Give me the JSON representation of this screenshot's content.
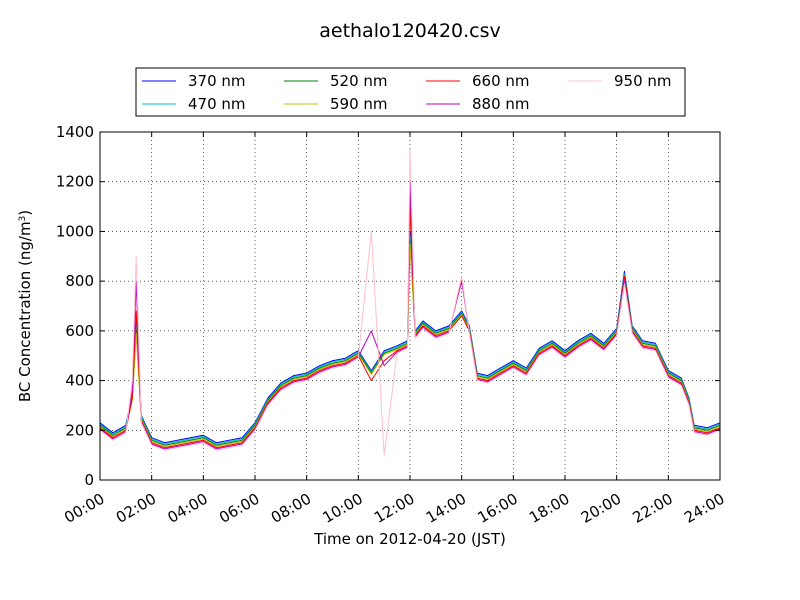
{
  "chart_data": {
    "type": "line",
    "title": "aethalo120420.csv",
    "xlabel": "Time on 2012-04-20 (JST)",
    "ylabel": "BC Concentration (ng/m³)",
    "ylabel_main": "BC Concentration (ng/m",
    "ylabel_sup": "3",
    "ylabel_close": ")",
    "xlim": [
      0,
      24
    ],
    "ylim": [
      0,
      1400
    ],
    "grid": true,
    "legend_position": "top-outside",
    "x_ticks": [
      0,
      2,
      4,
      6,
      8,
      10,
      12,
      14,
      16,
      18,
      20,
      22,
      24
    ],
    "x_tick_labels": [
      "00:00",
      "02:00",
      "04:00",
      "06:00",
      "08:00",
      "10:00",
      "12:00",
      "14:00",
      "16:00",
      "18:00",
      "20:00",
      "22:00",
      "24:00"
    ],
    "y_ticks": [
      0,
      200,
      400,
      600,
      800,
      1000,
      1200,
      1400
    ],
    "y_tick_labels": [
      "0",
      "200",
      "400",
      "600",
      "800",
      "1000",
      "1200",
      "1400"
    ],
    "x_hours": [
      0.0,
      0.5,
      1.0,
      1.25,
      1.4,
      1.6,
      2.0,
      2.5,
      3.0,
      3.5,
      4.0,
      4.5,
      5.0,
      5.5,
      6.0,
      6.5,
      7.0,
      7.5,
      8.0,
      8.5,
      9.0,
      9.5,
      10.0,
      10.5,
      11.0,
      11.5,
      11.9,
      12.0,
      12.2,
      12.5,
      13.0,
      13.5,
      14.0,
      14.3,
      14.6,
      15.0,
      15.5,
      16.0,
      16.5,
      17.0,
      17.5,
      18.0,
      18.5,
      19.0,
      19.5,
      20.0,
      20.3,
      20.6,
      21.0,
      21.5,
      22.0,
      22.5,
      22.8,
      23.0,
      23.5,
      24.0
    ],
    "series": [
      {
        "name": "370 nm",
        "color": "#0000ff",
        "values": [
          230,
          190,
          220,
          350,
          640,
          260,
          170,
          150,
          160,
          170,
          180,
          150,
          160,
          170,
          230,
          330,
          390,
          420,
          430,
          460,
          480,
          490,
          520,
          440,
          520,
          540,
          560,
          1000,
          600,
          640,
          600,
          620,
          680,
          620,
          430,
          420,
          450,
          480,
          450,
          530,
          560,
          520,
          560,
          590,
          550,
          610,
          840,
          620,
          560,
          550,
          440,
          410,
          330,
          220,
          210,
          230
        ]
      },
      {
        "name": "470 nm",
        "color": "#00bfbf",
        "values": [
          225,
          185,
          215,
          340,
          620,
          255,
          165,
          145,
          155,
          165,
          175,
          145,
          155,
          165,
          225,
          325,
          385,
          415,
          425,
          455,
          475,
          485,
          515,
          435,
          515,
          535,
          555,
          980,
          595,
          635,
          595,
          615,
          675,
          615,
          425,
          415,
          445,
          475,
          445,
          525,
          555,
          515,
          555,
          585,
          545,
          605,
          830,
          615,
          555,
          545,
          435,
          405,
          325,
          215,
          205,
          225
        ]
      },
      {
        "name": "520 nm",
        "color": "#008000",
        "values": [
          220,
          180,
          210,
          330,
          600,
          250,
          160,
          140,
          150,
          160,
          170,
          140,
          150,
          160,
          220,
          320,
          380,
          410,
          420,
          450,
          470,
          480,
          510,
          430,
          510,
          530,
          550,
          960,
          590,
          630,
          590,
          610,
          670,
          610,
          420,
          410,
          440,
          470,
          440,
          520,
          550,
          510,
          550,
          580,
          540,
          600,
          820,
          610,
          550,
          540,
          430,
          400,
          320,
          210,
          200,
          220
        ]
      },
      {
        "name": "590 nm",
        "color": "#bfbf00",
        "values": [
          215,
          175,
          205,
          320,
          590,
          245,
          155,
          135,
          145,
          155,
          165,
          135,
          145,
          155,
          215,
          315,
          375,
          405,
          415,
          445,
          465,
          475,
          505,
          425,
          505,
          525,
          545,
          950,
          585,
          625,
          585,
          605,
          665,
          605,
          415,
          405,
          435,
          465,
          435,
          515,
          545,
          505,
          545,
          575,
          535,
          595,
          810,
          605,
          545,
          535,
          425,
          395,
          315,
          205,
          195,
          215
        ]
      },
      {
        "name": "660 nm",
        "color": "#ff0000",
        "values": [
          210,
          170,
          200,
          330,
          680,
          240,
          150,
          130,
          140,
          150,
          160,
          130,
          140,
          150,
          210,
          310,
          370,
          400,
          410,
          440,
          460,
          470,
          500,
          400,
          480,
          520,
          540,
          1100,
          580,
          620,
          580,
          600,
          660,
          600,
          410,
          400,
          430,
          460,
          430,
          510,
          540,
          500,
          540,
          570,
          530,
          590,
          820,
          600,
          540,
          530,
          420,
          390,
          310,
          200,
          190,
          210
        ]
      },
      {
        "name": "880 nm",
        "color": "#bf00bf",
        "values": [
          205,
          165,
          195,
          360,
          800,
          235,
          145,
          125,
          135,
          145,
          155,
          125,
          135,
          145,
          205,
          305,
          365,
          395,
          405,
          435,
          455,
          465,
          495,
          600,
          460,
          515,
          535,
          1200,
          575,
          615,
          575,
          595,
          800,
          595,
          405,
          395,
          425,
          455,
          425,
          505,
          535,
          495,
          535,
          565,
          525,
          585,
          800,
          595,
          535,
          525,
          415,
          385,
          305,
          195,
          185,
          205
        ]
      },
      {
        "name": "950 nm",
        "color": "#ffc0cb",
        "values": [
          200,
          160,
          190,
          400,
          900,
          230,
          140,
          120,
          130,
          140,
          150,
          120,
          130,
          140,
          200,
          300,
          360,
          390,
          400,
          430,
          450,
          460,
          490,
          1000,
          100,
          510,
          530,
          1330,
          570,
          610,
          570,
          590,
          820,
          590,
          400,
          390,
          420,
          450,
          420,
          500,
          530,
          490,
          530,
          560,
          520,
          580,
          790,
          590,
          530,
          520,
          410,
          380,
          300,
          190,
          180,
          200
        ]
      }
    ]
  }
}
